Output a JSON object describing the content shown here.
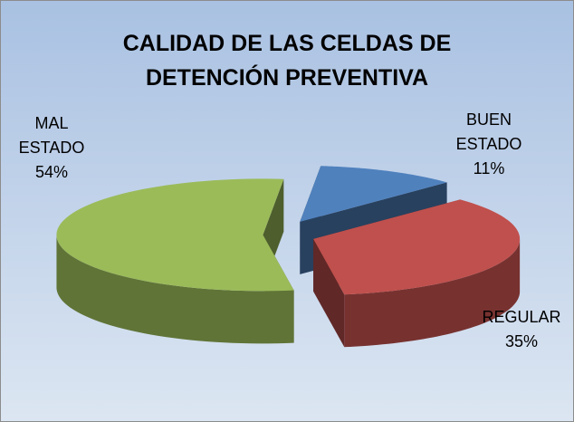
{
  "chart_data": {
    "type": "pie3d",
    "title": "CALIDAD DE LAS CELDAS DE DETENCIÓN PREVENTIVA",
    "categories": [
      "BUEN ESTADO",
      "REGULAR",
      "MAL ESTADO"
    ],
    "values": [
      11,
      35,
      54
    ],
    "value_labels": [
      "11%",
      "35%",
      "54%"
    ],
    "colors": [
      "#4f81bd",
      "#c0504d",
      "#9bbb59"
    ]
  }
}
